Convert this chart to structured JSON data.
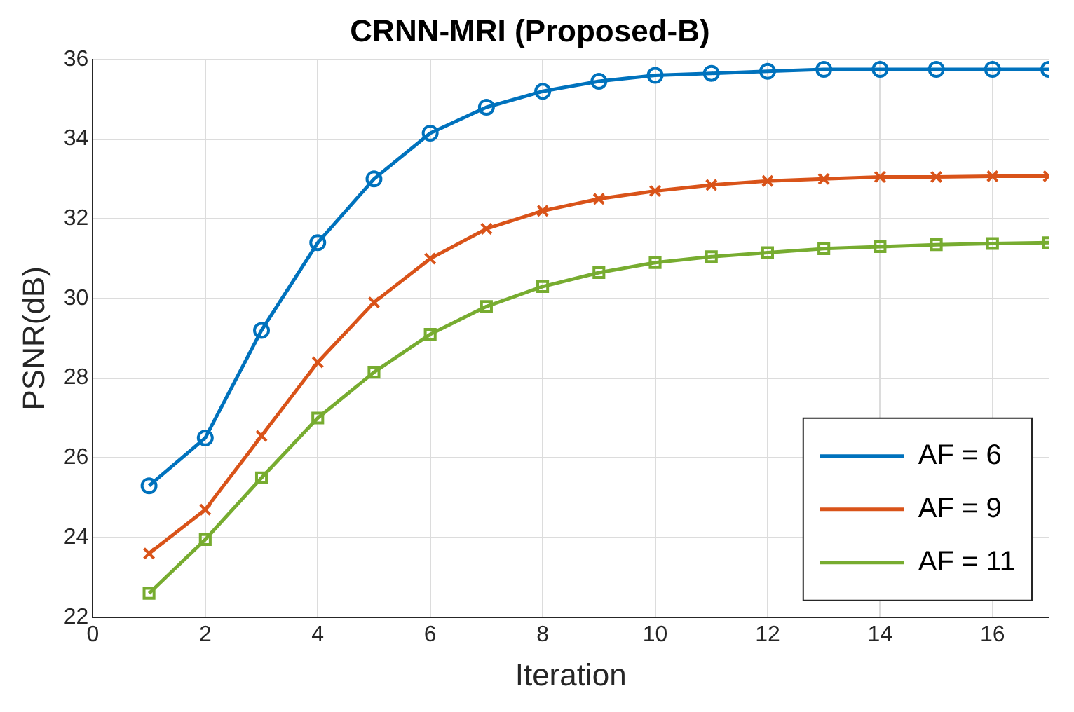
{
  "chart_data": {
    "type": "line",
    "title": "CRNN-MRI (Proposed-B)",
    "xlabel": "Iteration",
    "ylabel": "PSNR(dB)",
    "x": [
      1,
      2,
      3,
      4,
      5,
      6,
      7,
      8,
      9,
      10,
      11,
      12,
      13,
      14,
      15,
      16,
      17
    ],
    "series": [
      {
        "name": "AF = 6",
        "color": "#0072bd",
        "marker": "circle",
        "values": [
          25.3,
          26.5,
          29.2,
          31.4,
          33.0,
          34.15,
          34.8,
          35.2,
          35.45,
          35.6,
          35.65,
          35.7,
          35.75,
          35.75,
          35.75,
          35.75,
          35.75
        ]
      },
      {
        "name": "AF = 9",
        "color": "#d95319",
        "marker": "cross",
        "values": [
          23.6,
          24.7,
          26.55,
          28.4,
          29.9,
          31.0,
          31.75,
          32.2,
          32.5,
          32.7,
          32.85,
          32.95,
          33.0,
          33.05,
          33.05,
          33.07,
          33.07
        ]
      },
      {
        "name": "AF = 11",
        "color": "#77ac30",
        "marker": "square",
        "values": [
          22.6,
          23.95,
          25.5,
          27.0,
          28.15,
          29.1,
          29.8,
          30.3,
          30.65,
          30.9,
          31.05,
          31.15,
          31.25,
          31.3,
          31.35,
          31.38,
          31.4
        ]
      }
    ],
    "xlim": [
      0,
      17
    ],
    "xticks": [
      0,
      2,
      4,
      6,
      8,
      10,
      12,
      14,
      16
    ],
    "ylim": [
      22,
      36
    ],
    "yticks": [
      22,
      24,
      26,
      28,
      30,
      32,
      34,
      36
    ],
    "grid": true,
    "legend": "bottom right",
    "line_style": "solid"
  }
}
